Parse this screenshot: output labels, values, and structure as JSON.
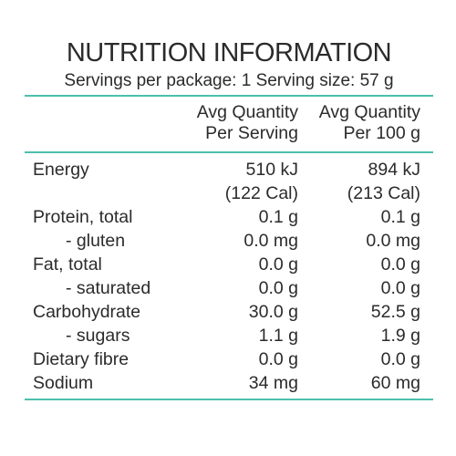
{
  "panel": {
    "title": "NUTRITION INFORMATION",
    "servings_line": "Servings per package: 1 Serving size: 57 g",
    "column_headers": [
      [
        "Avg Quantity",
        "Per Serving"
      ],
      [
        "Avg Quantity",
        "Per 100 g"
      ]
    ],
    "rows": [
      {
        "label": "Energy",
        "per_serving": "510 kJ",
        "per_100g": "894 kJ"
      },
      {
        "label": "",
        "per_serving": "(122 Cal)",
        "per_100g": "(213 Cal)"
      },
      {
        "label": "Protein, total",
        "per_serving": "0.1 g",
        "per_100g": "0.1 g"
      },
      {
        "label": "- gluten",
        "per_serving": "0.0 mg",
        "per_100g": "0.0 mg"
      },
      {
        "label": "Fat, total",
        "per_serving": "0.0 g",
        "per_100g": "0.0 g"
      },
      {
        "label": "- saturated",
        "per_serving": "0.0 g",
        "per_100g": "0.0 g"
      },
      {
        "label": "Carbohydrate",
        "per_serving": "30.0 g",
        "per_100g": "52.5 g"
      },
      {
        "label": "- sugars",
        "per_serving": "1.1 g",
        "per_100g": "1.9 g"
      },
      {
        "label": "Dietary fibre",
        "per_serving": "0.0 g",
        "per_100g": "0.0 g"
      },
      {
        "label": "Sodium",
        "per_serving": "34 mg",
        "per_100g": "60 mg"
      }
    ]
  },
  "colors": {
    "rule": "#4dbfab",
    "text": "#2b2b2b",
    "background": "#ffffff"
  }
}
